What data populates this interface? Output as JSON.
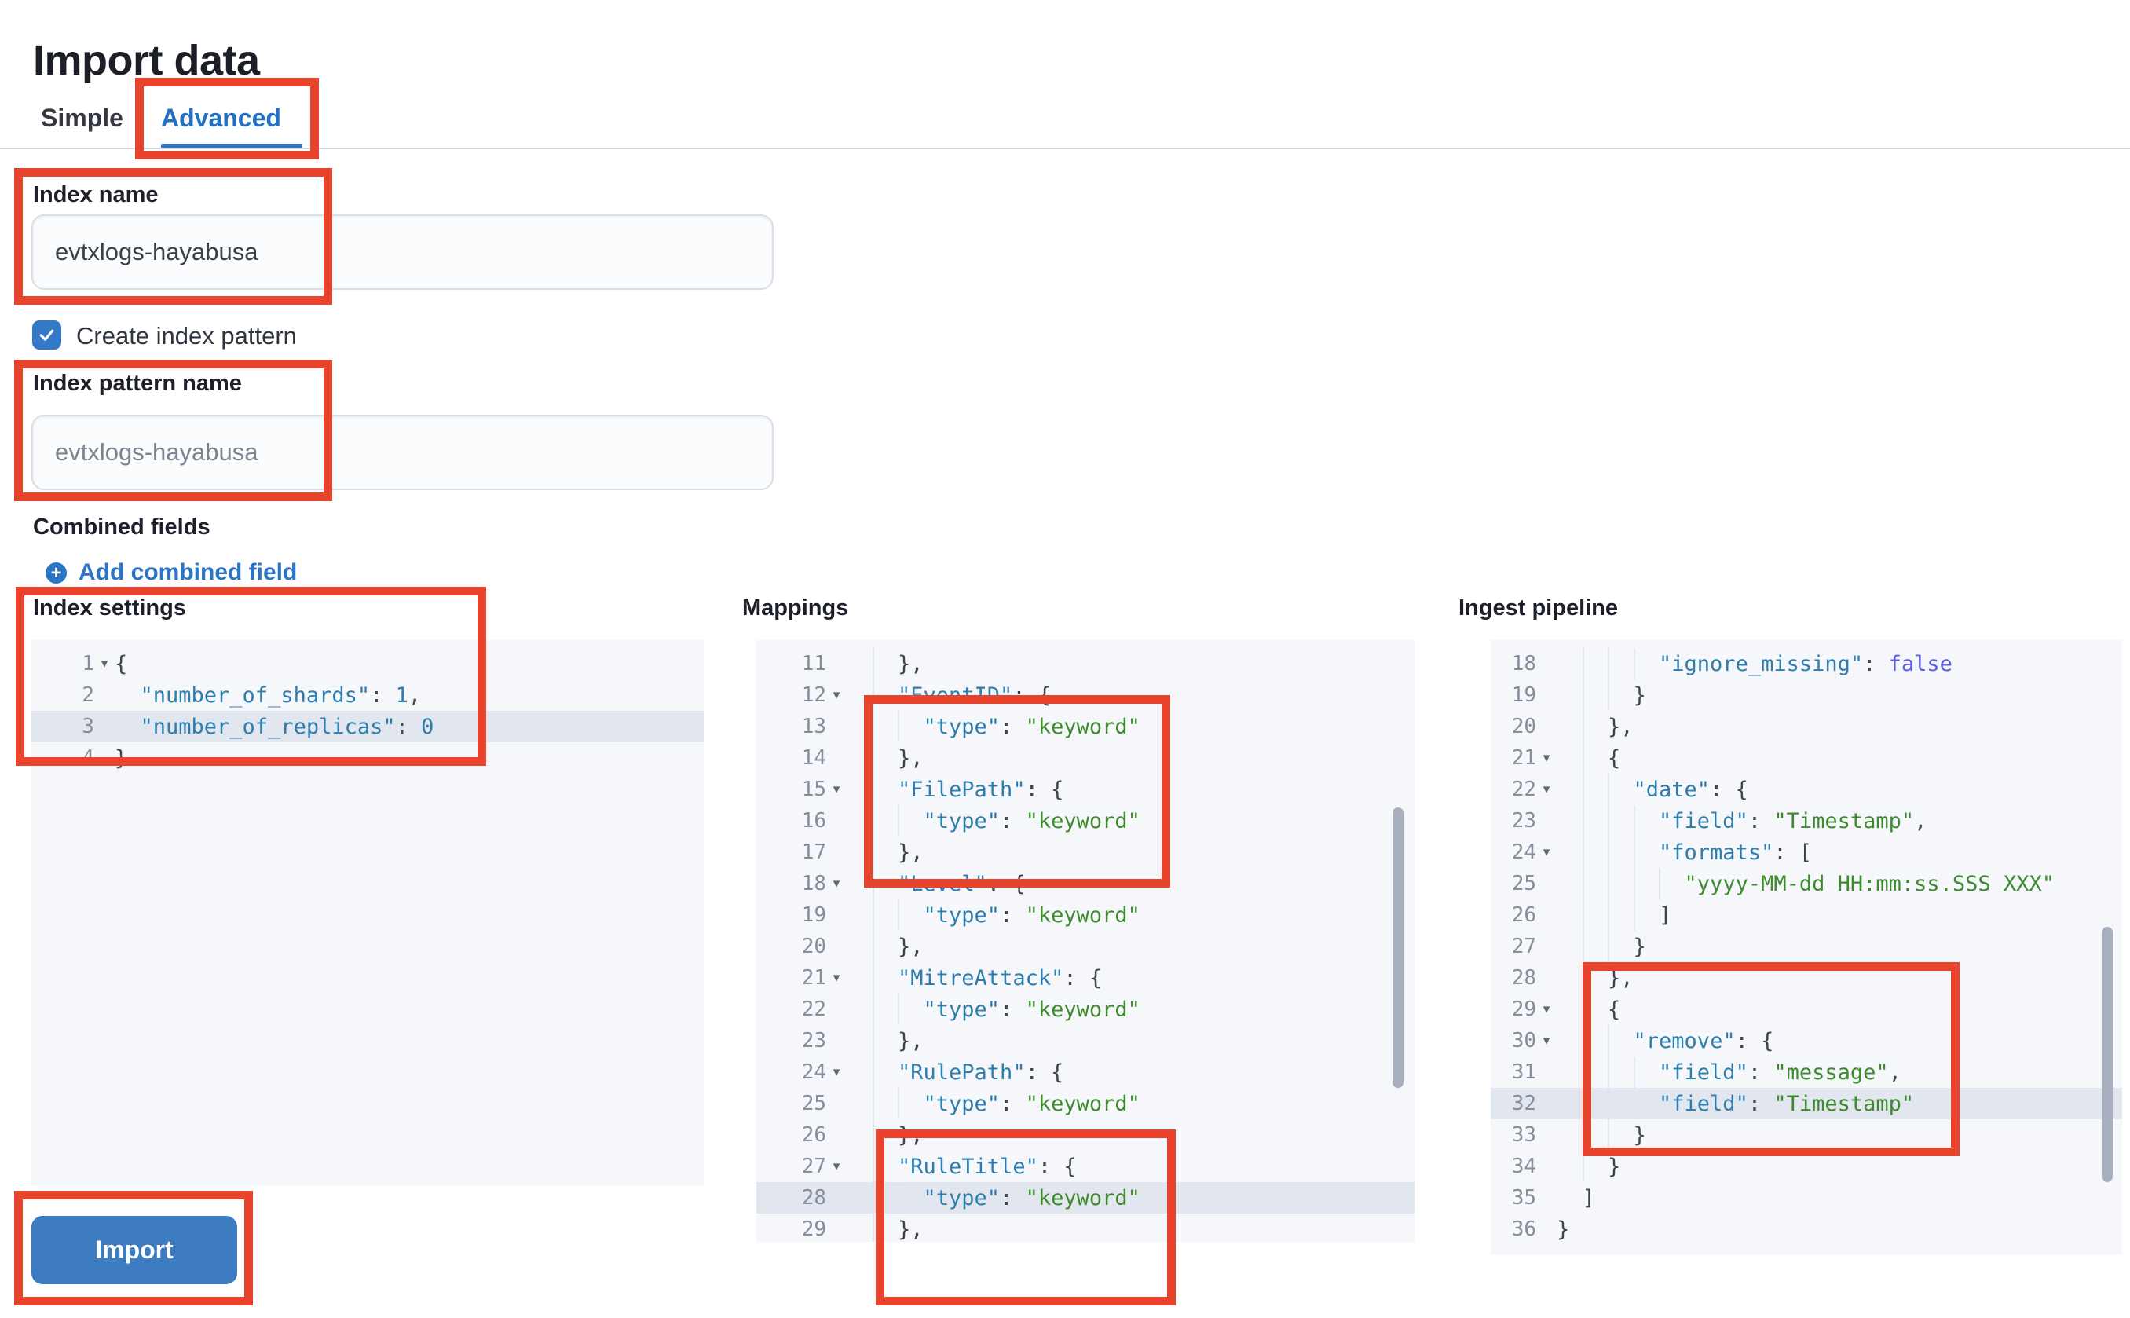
{
  "page": {
    "title": "Import data"
  },
  "tabs": {
    "simple": "Simple",
    "advanced": "Advanced"
  },
  "form": {
    "index_name": {
      "label": "Index name",
      "value": "evtxlogs-hayabusa"
    },
    "create_index_pattern": {
      "label": "Create index pattern",
      "checked": true
    },
    "index_pattern_name": {
      "label": "Index pattern name",
      "placeholder": "evtxlogs-hayabusa"
    },
    "combined_fields": {
      "label": "Combined fields",
      "add_link": "Add combined field"
    }
  },
  "import_button": {
    "label": "Import"
  },
  "colors": {
    "annotation_red": "#e8432c",
    "tab_active_blue": "#2270c1",
    "link_blue": "#2b74c6",
    "checkbox_blue": "#3478c8",
    "button_blue": "#3d7cc0",
    "code_key": "#2e7ead",
    "code_string": "#3e8a2e",
    "code_bool": "#5b5fe8",
    "editor_bg": "#f5f7fa",
    "active_line_bg": "#e2e6ee"
  },
  "editors": [
    {
      "label": "Index settings",
      "lines": [
        {
          "n": 1,
          "fold": true,
          "ind": 0,
          "seg": [
            [
              "p",
              "{"
            ]
          ]
        },
        {
          "n": 2,
          "fold": false,
          "ind": 1,
          "seg": [
            [
              "k",
              "\"number_of_shards\""
            ],
            [
              "p",
              ": "
            ],
            [
              "n",
              "1"
            ],
            [
              "p",
              ","
            ]
          ]
        },
        {
          "n": 3,
          "fold": false,
          "ind": 1,
          "hl": true,
          "seg": [
            [
              "k",
              "\"number_of_replicas\""
            ],
            [
              "p",
              ": "
            ],
            [
              "n",
              "0"
            ]
          ]
        },
        {
          "n": 4,
          "fold": false,
          "ind": 0,
          "seg": [
            [
              "p",
              "}"
            ]
          ]
        }
      ]
    },
    {
      "label": "Mappings",
      "lines": [
        {
          "n": 11,
          "fold": false,
          "ind": 2,
          "seg": [
            [
              "p",
              "},"
            ]
          ]
        },
        {
          "n": 12,
          "fold": true,
          "ind": 2,
          "seg": [
            [
              "k",
              "\"EventID\""
            ],
            [
              "p",
              ": {"
            ]
          ]
        },
        {
          "n": 13,
          "fold": false,
          "ind": 3,
          "seg": [
            [
              "k",
              "\"type\""
            ],
            [
              "p",
              ": "
            ],
            [
              "s",
              "\"keyword\""
            ]
          ]
        },
        {
          "n": 14,
          "fold": false,
          "ind": 2,
          "seg": [
            [
              "p",
              "},"
            ]
          ]
        },
        {
          "n": 15,
          "fold": true,
          "ind": 2,
          "seg": [
            [
              "k",
              "\"FilePath\""
            ],
            [
              "p",
              ": {"
            ]
          ]
        },
        {
          "n": 16,
          "fold": false,
          "ind": 3,
          "seg": [
            [
              "k",
              "\"type\""
            ],
            [
              "p",
              ": "
            ],
            [
              "s",
              "\"keyword\""
            ]
          ]
        },
        {
          "n": 17,
          "fold": false,
          "ind": 2,
          "seg": [
            [
              "p",
              "},"
            ]
          ]
        },
        {
          "n": 18,
          "fold": true,
          "ind": 2,
          "seg": [
            [
              "k",
              "\"Level\""
            ],
            [
              "p",
              ": {"
            ]
          ]
        },
        {
          "n": 19,
          "fold": false,
          "ind": 3,
          "seg": [
            [
              "k",
              "\"type\""
            ],
            [
              "p",
              ": "
            ],
            [
              "s",
              "\"keyword\""
            ]
          ]
        },
        {
          "n": 20,
          "fold": false,
          "ind": 2,
          "seg": [
            [
              "p",
              "},"
            ]
          ]
        },
        {
          "n": 21,
          "fold": true,
          "ind": 2,
          "seg": [
            [
              "k",
              "\"MitreAttack\""
            ],
            [
              "p",
              ": {"
            ]
          ]
        },
        {
          "n": 22,
          "fold": false,
          "ind": 3,
          "seg": [
            [
              "k",
              "\"type\""
            ],
            [
              "p",
              ": "
            ],
            [
              "s",
              "\"keyword\""
            ]
          ]
        },
        {
          "n": 23,
          "fold": false,
          "ind": 2,
          "seg": [
            [
              "p",
              "},"
            ]
          ]
        },
        {
          "n": 24,
          "fold": true,
          "ind": 2,
          "seg": [
            [
              "k",
              "\"RulePath\""
            ],
            [
              "p",
              ": {"
            ]
          ]
        },
        {
          "n": 25,
          "fold": false,
          "ind": 3,
          "seg": [
            [
              "k",
              "\"type\""
            ],
            [
              "p",
              ": "
            ],
            [
              "s",
              "\"keyword\""
            ]
          ]
        },
        {
          "n": 26,
          "fold": false,
          "ind": 2,
          "seg": [
            [
              "p",
              "},"
            ]
          ]
        },
        {
          "n": 27,
          "fold": true,
          "ind": 2,
          "seg": [
            [
              "k",
              "\"RuleTitle\""
            ],
            [
              "p",
              ": {"
            ]
          ]
        },
        {
          "n": 28,
          "fold": false,
          "ind": 3,
          "hl": true,
          "seg": [
            [
              "k",
              "\"type\""
            ],
            [
              "p",
              ": "
            ],
            [
              "s",
              "\"keyword\""
            ]
          ]
        },
        {
          "n": 29,
          "fold": false,
          "ind": 2,
          "seg": [
            [
              "p",
              "},"
            ]
          ]
        }
      ]
    },
    {
      "label": "Ingest pipeline",
      "lines": [
        {
          "n": 18,
          "fold": false,
          "ind": 4,
          "seg": [
            [
              "k",
              "\"ignore_missing\""
            ],
            [
              "p",
              ": "
            ],
            [
              "b",
              "false"
            ]
          ]
        },
        {
          "n": 19,
          "fold": false,
          "ind": 3,
          "seg": [
            [
              "p",
              "}"
            ]
          ]
        },
        {
          "n": 20,
          "fold": false,
          "ind": 2,
          "seg": [
            [
              "p",
              "},"
            ]
          ]
        },
        {
          "n": 21,
          "fold": true,
          "ind": 2,
          "seg": [
            [
              "p",
              "{"
            ]
          ]
        },
        {
          "n": 22,
          "fold": true,
          "ind": 3,
          "seg": [
            [
              "k",
              "\"date\""
            ],
            [
              "p",
              ": {"
            ]
          ]
        },
        {
          "n": 23,
          "fold": false,
          "ind": 4,
          "seg": [
            [
              "k",
              "\"field\""
            ],
            [
              "p",
              ": "
            ],
            [
              "s",
              "\"Timestamp\""
            ],
            [
              "p",
              ","
            ]
          ]
        },
        {
          "n": 24,
          "fold": true,
          "ind": 4,
          "seg": [
            [
              "k",
              "\"formats\""
            ],
            [
              "p",
              ": ["
            ]
          ]
        },
        {
          "n": 25,
          "fold": false,
          "ind": 5,
          "seg": [
            [
              "s",
              "\"yyyy-MM-dd HH:mm:ss.SSS XXX\""
            ]
          ]
        },
        {
          "n": 26,
          "fold": false,
          "ind": 4,
          "seg": [
            [
              "p",
              "]"
            ]
          ]
        },
        {
          "n": 27,
          "fold": false,
          "ind": 3,
          "seg": [
            [
              "p",
              "}"
            ]
          ]
        },
        {
          "n": 28,
          "fold": false,
          "ind": 2,
          "seg": [
            [
              "p",
              "},"
            ]
          ]
        },
        {
          "n": 29,
          "fold": true,
          "ind": 2,
          "seg": [
            [
              "p",
              "{"
            ]
          ]
        },
        {
          "n": 30,
          "fold": true,
          "ind": 3,
          "seg": [
            [
              "k",
              "\"remove\""
            ],
            [
              "p",
              ": {"
            ]
          ]
        },
        {
          "n": 31,
          "fold": false,
          "ind": 4,
          "seg": [
            [
              "k",
              "\"field\""
            ],
            [
              "p",
              ": "
            ],
            [
              "s",
              "\"message\""
            ],
            [
              "p",
              ","
            ]
          ]
        },
        {
          "n": 32,
          "fold": false,
          "ind": 4,
          "hl": true,
          "seg": [
            [
              "k",
              "\"field\""
            ],
            [
              "p",
              ": "
            ],
            [
              "s",
              "\"Timestamp\""
            ]
          ]
        },
        {
          "n": 33,
          "fold": false,
          "ind": 3,
          "seg": [
            [
              "p",
              "}"
            ]
          ]
        },
        {
          "n": 34,
          "fold": false,
          "ind": 2,
          "seg": [
            [
              "p",
              "}"
            ]
          ]
        },
        {
          "n": 35,
          "fold": false,
          "ind": 1,
          "seg": [
            [
              "p",
              "]"
            ]
          ]
        },
        {
          "n": 36,
          "fold": false,
          "ind": 0,
          "seg": [
            [
              "p",
              "}"
            ]
          ]
        }
      ]
    }
  ]
}
